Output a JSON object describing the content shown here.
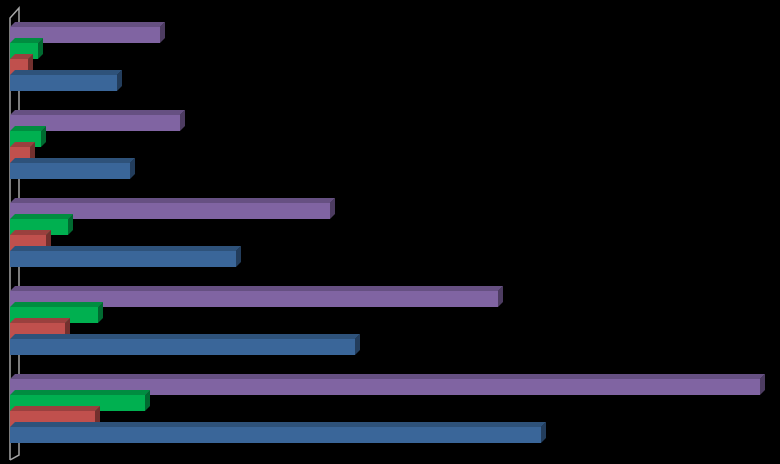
{
  "chart_data": {
    "type": "bar",
    "orientation": "horizontal",
    "categories": [
      null,
      null,
      null,
      null,
      null
    ],
    "series": [
      {
        "color": "#8064a2",
        "values": [
          150,
          170,
          320,
          488,
          750
        ]
      },
      {
        "color": "#00b050",
        "values": [
          28,
          31,
          58,
          88,
          135
        ]
      },
      {
        "color": "#c0504d",
        "values": [
          18,
          20,
          36,
          55,
          85
        ]
      },
      {
        "color": "#3a6699",
        "values": [
          107,
          120,
          226,
          345,
          531
        ]
      }
    ],
    "xlim": [
      0,
      750
    ]
  }
}
